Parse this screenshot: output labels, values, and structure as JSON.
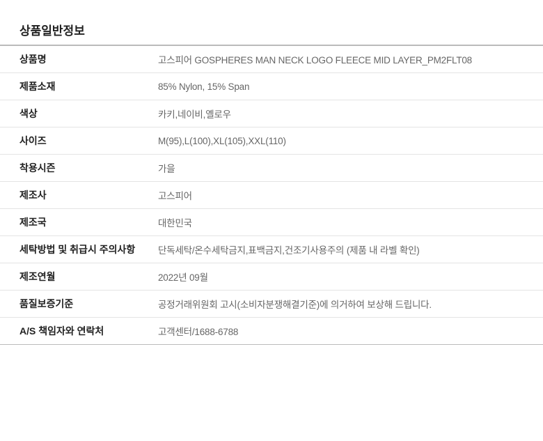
{
  "title": "상품일반정보",
  "rows": [
    {
      "label": "상품명",
      "value": "고스피어 GOSPHERES MAN NECK LOGO FLEECE MID LAYER_PM2FLT08"
    },
    {
      "label": "제품소재",
      "value": "85% Nylon, 15% Span"
    },
    {
      "label": "색상",
      "value": "카키,네이비,옐로우"
    },
    {
      "label": "사이즈",
      "value": "M(95),L(100),XL(105),XXL(110)"
    },
    {
      "label": "착용시즌",
      "value": "가을"
    },
    {
      "label": "제조사",
      "value": "고스피어"
    },
    {
      "label": "제조국",
      "value": "대한민국"
    },
    {
      "label": "세탁방법 및 취급시 주의사항",
      "value": "단독세탁/온수세탁금지,표백금지,건조기사용주의 (제품 내 라벨 확인)"
    },
    {
      "label": "제조연월",
      "value": "2022년 09월"
    },
    {
      "label": "품질보증기준",
      "value": "공정거래위원회 고시(소비자분쟁해결기준)에 의거하여  보상해 드립니다."
    },
    {
      "label": "A/S 책임자와 연락처",
      "value": "고객센터/1688-6788"
    }
  ]
}
